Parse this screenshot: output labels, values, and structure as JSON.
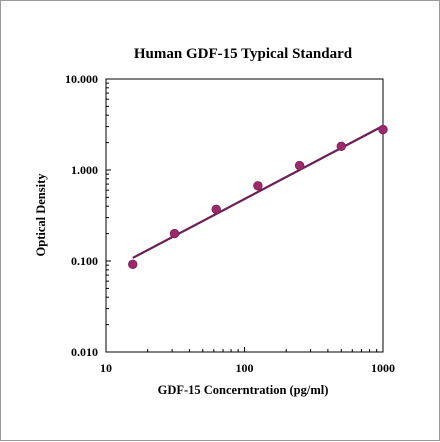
{
  "chart_data": {
    "type": "scatter",
    "title": "Human GDF-15 Typical Standard",
    "xlabel": "GDF-15 Concerntration (pg/ml)",
    "ylabel": "Optical Density",
    "xscale": "log",
    "yscale": "log",
    "xlim": [
      10,
      1000
    ],
    "ylim": [
      0.01,
      10
    ],
    "xticks": [
      10,
      100,
      1000
    ],
    "xtick_labels": [
      "10",
      "100",
      "1000"
    ],
    "yticks": [
      0.01,
      0.1,
      1,
      10
    ],
    "ytick_labels": [
      "0.010",
      "0.100",
      "1.000",
      "10.000"
    ],
    "grid": false,
    "legend": "none",
    "series": [
      {
        "points": [
          {
            "x": 15.6,
            "y": 0.092
          },
          {
            "x": 31.25,
            "y": 0.2
          },
          {
            "x": 62.5,
            "y": 0.37
          },
          {
            "x": 125,
            "y": 0.67
          },
          {
            "x": 250,
            "y": 1.12
          },
          {
            "x": 500,
            "y": 1.82
          },
          {
            "x": 1000,
            "y": 2.78
          }
        ],
        "color": "#9c2a6b"
      }
    ],
    "fit_line": {
      "x": [
        15.6,
        1000
      ],
      "y": [
        0.108,
        3.05
      ],
      "color": "#6b1f55"
    }
  }
}
